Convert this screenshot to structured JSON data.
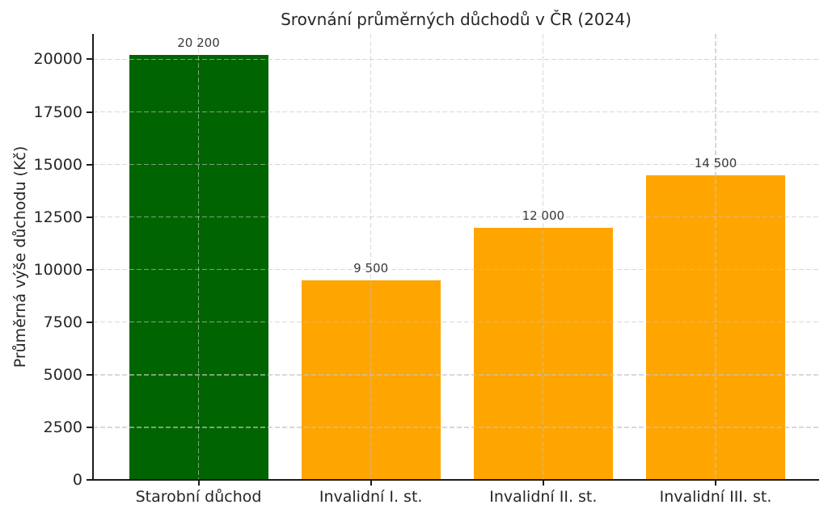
{
  "chart_data": {
    "type": "bar",
    "title": "Srovnání průměrných důchodů v ČR (2024)",
    "ylabel": "Průměrná výše důchodu (Kč)",
    "xlabel": "",
    "categories": [
      "Starobní důchod",
      "Invalidní I. st.",
      "Invalidní II. st.",
      "Invalidní III. st."
    ],
    "values": [
      20200,
      9500,
      12000,
      14500
    ],
    "value_labels": [
      "20 200",
      "9 500",
      "12 000",
      "14 500"
    ],
    "bar_colors": [
      "#006400",
      "#FFA500",
      "#FFA500",
      "#FFA500"
    ],
    "yticks": [
      0,
      2500,
      5000,
      7500,
      10000,
      12500,
      15000,
      17500,
      20000
    ],
    "ylim": [
      0,
      21210
    ],
    "grid": {
      "horizontal": true,
      "vertical": true,
      "style": "dashed",
      "color": "#cccccc",
      "drawn_over_bars": true
    },
    "legend": "none",
    "colors": {
      "axis": "#1a1a1a",
      "text": "#262626",
      "background": "#ffffff"
    }
  }
}
